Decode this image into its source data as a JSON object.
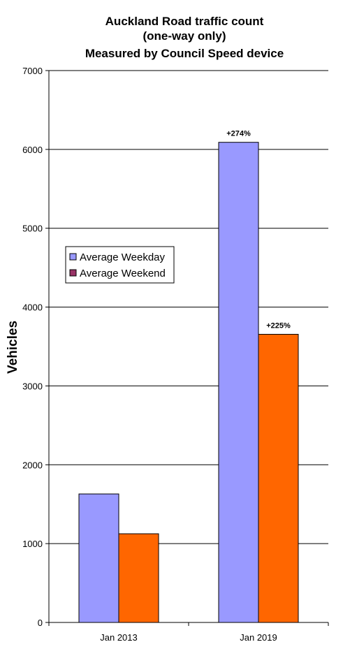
{
  "chart_data": {
    "type": "bar",
    "title_lines": [
      "Auckland Road traffic count",
      "(one-way only)",
      "Measured by Council Speed device"
    ],
    "xlabel": "",
    "ylabel": "Vehicles",
    "ylim": [
      0,
      7000
    ],
    "yticks": [
      0,
      1000,
      2000,
      3000,
      4000,
      5000,
      6000,
      7000
    ],
    "grid": true,
    "legend_position": "left-middle",
    "categories": [
      "Jan 2013",
      "Jan 2019"
    ],
    "series": [
      {
        "name": "Average Weekday",
        "color": "#9999ff",
        "legend_color": "#9999ff",
        "values": [
          1630,
          6090
        ],
        "data_labels": [
          "",
          "+274%"
        ]
      },
      {
        "name": "Average Weekend",
        "color": "#ff6600",
        "legend_color": "#993366",
        "values": [
          1125,
          3655
        ],
        "data_labels": [
          "",
          "+225%"
        ]
      }
    ]
  }
}
